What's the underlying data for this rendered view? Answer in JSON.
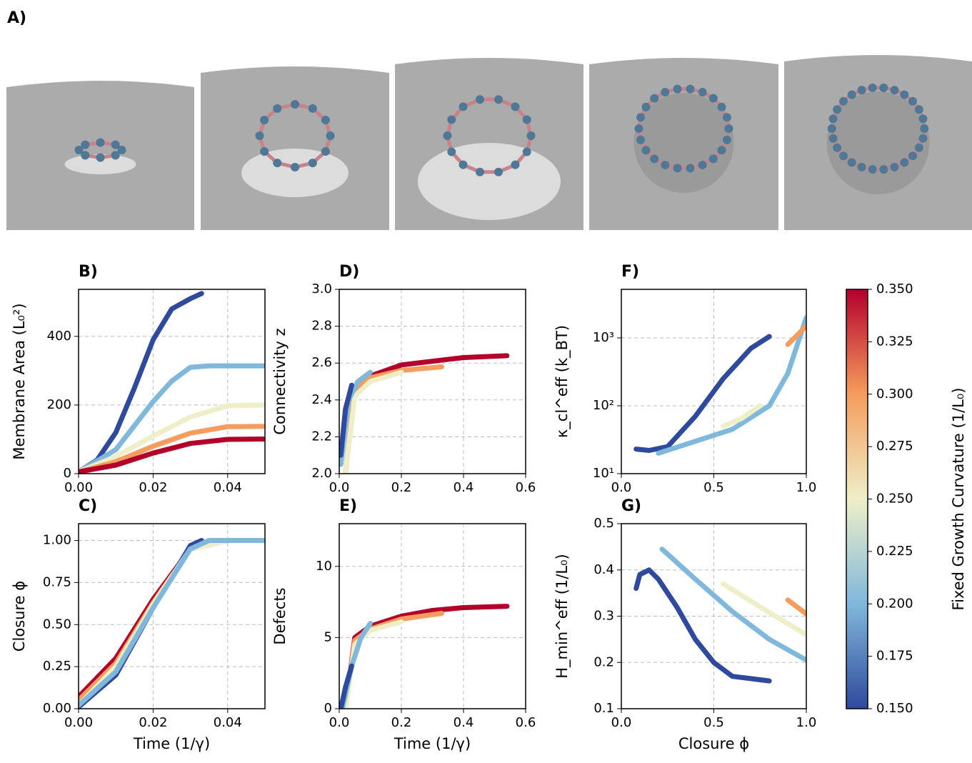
{
  "panel_a": {
    "label": "A)"
  },
  "chart_data": [
    {
      "type": "line",
      "title": "B)",
      "ylabel": "Membrane Area (L₀²)",
      "xlim": [
        0,
        0.05
      ],
      "ylim": [
        0,
        537
      ],
      "xticks": [
        {
          "value": 0,
          "label": "0.00"
        },
        0.02,
        0.04
      ],
      "yticks": [
        0,
        200,
        400
      ],
      "grid": true,
      "series": [
        {
          "color": "#2f4a9c",
          "x": [
            0,
            0.005,
            0.01,
            0.015,
            0.02,
            0.025,
            0.03,
            0.033
          ],
          "values": [
            5,
            40,
            120,
            250,
            390,
            480,
            510,
            525
          ]
        },
        {
          "color": "#80b8db",
          "x": [
            0,
            0.01,
            0.015,
            0.02,
            0.025,
            0.03,
            0.035,
            0.05
          ],
          "values": [
            5,
            70,
            140,
            210,
            270,
            310,
            314,
            314
          ]
        },
        {
          "color": "#eeefc8",
          "x": [
            0,
            0.01,
            0.02,
            0.03,
            0.04,
            0.05
          ],
          "values": [
            5,
            50,
            110,
            165,
            198,
            200
          ]
        },
        {
          "color": "#f59d5e",
          "x": [
            0,
            0.01,
            0.02,
            0.03,
            0.04,
            0.05
          ],
          "values": [
            5,
            35,
            80,
            118,
            137,
            138
          ]
        },
        {
          "color": "#b3002b",
          "x": [
            0,
            0.01,
            0.02,
            0.03,
            0.04,
            0.05
          ],
          "values": [
            5,
            25,
            60,
            88,
            100,
            101
          ]
        }
      ]
    },
    {
      "type": "line",
      "title": "C)",
      "xlabel": "Time (1/γ)",
      "ylabel": "Closure ϕ",
      "xlim": [
        0,
        0.05
      ],
      "ylim": [
        0,
        1.1
      ],
      "xticks": [
        {
          "value": 0,
          "label": "0.00"
        },
        0.02,
        0.04
      ],
      "yticks": [
        {
          "value": 0,
          "label": "0.00"
        },
        0.25,
        {
          "value": 0.5,
          "label": "0.50"
        },
        0.75,
        {
          "value": 1,
          "label": "1.00"
        }
      ],
      "grid": true,
      "series": [
        {
          "color": "#b3002b",
          "x": [
            0,
            0.01,
            0.02,
            0.03,
            0.04,
            0.05
          ],
          "values": [
            0.07,
            0.3,
            0.65,
            0.95,
            1,
            1
          ]
        },
        {
          "color": "#f59d5e",
          "x": [
            0,
            0.01,
            0.02,
            0.03,
            0.04,
            0.05
          ],
          "values": [
            0.05,
            0.27,
            0.63,
            0.95,
            1,
            1
          ]
        },
        {
          "color": "#2f4a9c",
          "x": [
            0,
            0.01,
            0.02,
            0.03,
            0.033
          ],
          "values": [
            0.01,
            0.2,
            0.6,
            0.97,
            1
          ]
        },
        {
          "color": "#eeefc8",
          "x": [
            0,
            0.01,
            0.02,
            0.03,
            0.04,
            0.05
          ],
          "values": [
            0.02,
            0.25,
            0.62,
            0.95,
            1,
            1
          ]
        },
        {
          "color": "#80b8db",
          "x": [
            0,
            0.01,
            0.02,
            0.03,
            0.035,
            0.05
          ],
          "values": [
            0.02,
            0.22,
            0.6,
            0.95,
            1,
            1
          ]
        }
      ]
    },
    {
      "type": "line",
      "title": "D)",
      "ylabel": "Connectivity z",
      "xlim": [
        0,
        0.6
      ],
      "ylim": [
        2.0,
        3.0
      ],
      "xticks": [
        {
          "value": 0,
          "label": "0.0"
        },
        0.2,
        0.4,
        0.6
      ],
      "yticks": [
        {
          "value": 2,
          "label": "2.0"
        },
        2.2,
        2.4,
        2.6,
        2.8,
        {
          "value": 3,
          "label": "3.0"
        }
      ],
      "grid": true,
      "series": [
        {
          "color": "#b3002b",
          "x": [
            0.02,
            0.05,
            0.1,
            0.2,
            0.3,
            0.4,
            0.54
          ],
          "values": [
            2.0,
            2.45,
            2.53,
            2.59,
            2.61,
            2.63,
            2.64
          ]
        },
        {
          "color": "#f59d5e",
          "x": [
            0.02,
            0.05,
            0.1,
            0.2,
            0.33
          ],
          "values": [
            2.0,
            2.45,
            2.52,
            2.56,
            2.58
          ]
        },
        {
          "color": "#eeefc8",
          "x": [
            0.02,
            0.05,
            0.1,
            0.2
          ],
          "values": [
            2.0,
            2.42,
            2.5,
            2.55
          ]
        },
        {
          "color": "#80b8db",
          "x": [
            0.005,
            0.03,
            0.06,
            0.1
          ],
          "values": [
            2.05,
            2.4,
            2.5,
            2.55
          ]
        },
        {
          "color": "#2f4a9c",
          "x": [
            0.005,
            0.02,
            0.04
          ],
          "values": [
            2.1,
            2.35,
            2.48
          ]
        }
      ]
    },
    {
      "type": "line",
      "title": "E)",
      "xlabel": "Time (1/γ)",
      "ylabel": "Defects",
      "xlim": [
        0,
        0.6
      ],
      "ylim": [
        0,
        13
      ],
      "xticks": [
        {
          "value": 0,
          "label": "0.0"
        },
        0.2,
        0.4,
        0.6
      ],
      "yticks": [
        0,
        5,
        10
      ],
      "grid": true,
      "series": [
        {
          "color": "#b3002b",
          "x": [
            0.02,
            0.05,
            0.1,
            0.2,
            0.3,
            0.4,
            0.54
          ],
          "values": [
            0,
            5,
            5.8,
            6.5,
            6.9,
            7.1,
            7.2
          ]
        },
        {
          "color": "#f59d5e",
          "x": [
            0.02,
            0.05,
            0.1,
            0.2,
            0.33
          ],
          "values": [
            0,
            4.8,
            5.6,
            6.3,
            6.7
          ]
        },
        {
          "color": "#eeefc8",
          "x": [
            0.02,
            0.05,
            0.1,
            0.2
          ],
          "values": [
            0,
            4.5,
            5.5,
            6.1
          ]
        },
        {
          "color": "#80b8db",
          "x": [
            0.01,
            0.04,
            0.07,
            0.1
          ],
          "values": [
            0,
            3,
            5,
            6
          ]
        },
        {
          "color": "#2f4a9c",
          "x": [
            0.005,
            0.02,
            0.04
          ],
          "values": [
            0,
            1.5,
            3
          ]
        }
      ]
    },
    {
      "type": "line",
      "title": "F)",
      "ylabel": "κ_cl^eff (k_BT)",
      "log_y": true,
      "xlim": [
        0,
        1
      ],
      "ylim": [
        10,
        5200
      ],
      "xticks": [
        {
          "value": 0,
          "label": "0.0"
        },
        0.5,
        {
          "value": 1,
          "label": "1.0"
        }
      ],
      "yticks": [
        {
          "value": 10,
          "label": "10¹"
        },
        {
          "value": 100,
          "label": "10²"
        },
        {
          "value": 1000,
          "label": "10³"
        }
      ],
      "grid": true,
      "series": [
        {
          "color": "#2f4a9c",
          "x": [
            0.08,
            0.15,
            0.25,
            0.4,
            0.55,
            0.7,
            0.8
          ],
          "values": [
            23,
            22,
            25,
            70,
            250,
            700,
            1050
          ]
        },
        {
          "color": "#80b8db",
          "x": [
            0.2,
            0.4,
            0.6,
            0.8,
            0.9,
            1
          ],
          "values": [
            20,
            30,
            45,
            100,
            300,
            2000
          ]
        },
        {
          "color": "#eeefc8",
          "x": [
            0.55,
            0.65,
            0.75
          ],
          "values": [
            50,
            65,
            100
          ]
        },
        {
          "color": "#f59d5e",
          "x": [
            0.9,
            1
          ],
          "values": [
            800,
            1500
          ]
        }
      ]
    },
    {
      "type": "line",
      "title": "G)",
      "xlabel": "Closure ϕ",
      "ylabel": "H_min^eff (1/L₀)",
      "xlim": [
        0,
        1
      ],
      "ylim": [
        0.1,
        0.5
      ],
      "xticks": [
        {
          "value": 0,
          "label": "0.0"
        },
        0.5,
        {
          "value": 1,
          "label": "1.0"
        }
      ],
      "yticks": [
        0.1,
        0.2,
        0.3,
        0.4,
        0.5
      ],
      "grid": true,
      "series": [
        {
          "color": "#2f4a9c",
          "x": [
            0.08,
            0.1,
            0.15,
            0.2,
            0.3,
            0.4,
            0.5,
            0.6,
            0.7,
            0.8
          ],
          "values": [
            0.36,
            0.39,
            0.4,
            0.38,
            0.32,
            0.25,
            0.2,
            0.17,
            0.165,
            0.16
          ]
        },
        {
          "color": "#80b8db",
          "x": [
            0.22,
            0.4,
            0.6,
            0.8,
            1
          ],
          "values": [
            0.445,
            0.38,
            0.31,
            0.25,
            0.205
          ]
        },
        {
          "color": "#eeefc8",
          "x": [
            0.55,
            0.75,
            1
          ],
          "values": [
            0.37,
            0.32,
            0.26
          ]
        },
        {
          "color": "#f59d5e",
          "x": [
            0.9,
            1
          ],
          "values": [
            0.335,
            0.305
          ]
        }
      ]
    },
    {
      "type": "colorbar",
      "ylabel": "Fixed Growth Curvature (1/L₀)",
      "ylim": [
        0.15,
        0.35
      ],
      "colors": [
        "#2f4a9c",
        "#80b8db",
        "#eeefc8",
        "#f59d5e",
        "#b3002b"
      ],
      "yticks": [
        {
          "value": 0.15,
          "label": "0.150"
        },
        0.175,
        {
          "value": 0.2,
          "label": "0.200"
        },
        0.225,
        {
          "value": 0.25,
          "label": "0.250"
        },
        0.275,
        {
          "value": 0.3,
          "label": "0.300"
        },
        0.325,
        {
          "value": 0.35,
          "label": "0.350"
        }
      ]
    }
  ]
}
